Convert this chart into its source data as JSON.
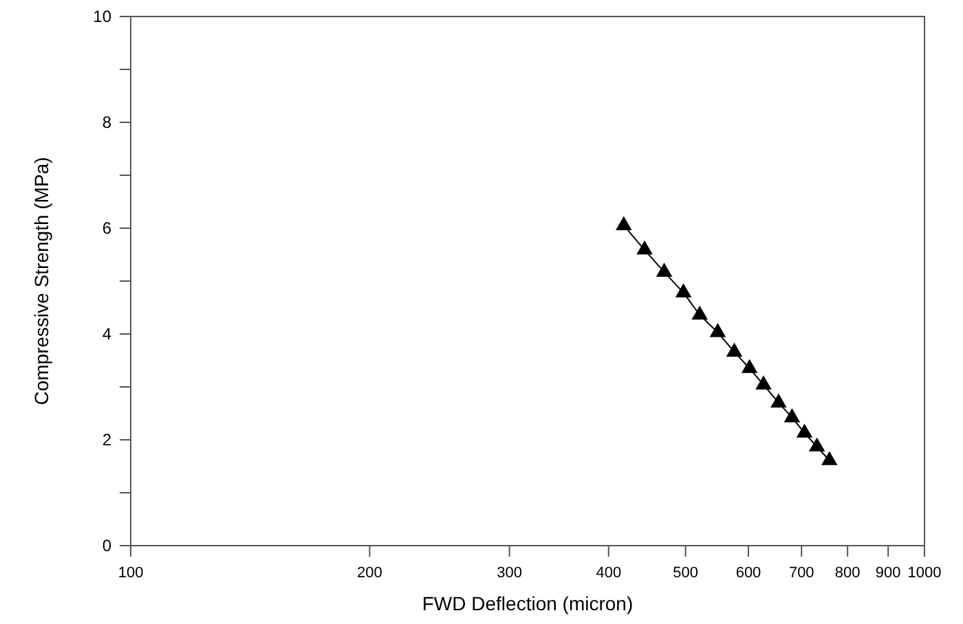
{
  "chart_data": {
    "type": "line",
    "xlabel": "FWD Deflection (micron)",
    "ylabel": "Compressive Strength (MPa)",
    "log": "x",
    "marker": "triangle",
    "line_style": "solid",
    "grid": false,
    "x": [
      418,
      444,
      470,
      497,
      521,
      549,
      576,
      602,
      627,
      655,
      681,
      706,
      732,
      759
    ],
    "series": [
      {
        "color": "#000000",
        "values": [
          6.05,
          5.59,
          5.17,
          4.78,
          4.36,
          4.03,
          3.66,
          3.35,
          3.04,
          2.7,
          2.42,
          2.13,
          1.87,
          1.61
        ]
      }
    ],
    "xlim": [
      100,
      1000
    ],
    "xticks": [
      100,
      200,
      300,
      400,
      500,
      600,
      700,
      800,
      900,
      1000
    ],
    "ylim": [
      0,
      10
    ],
    "yticks": [
      0,
      {
        "value": 1,
        "label": null
      },
      2,
      {
        "value": 3,
        "label": null
      },
      4,
      {
        "value": 5,
        "label": null
      },
      6,
      {
        "value": 7,
        "label": null
      },
      8,
      {
        "value": 9,
        "label": null
      },
      10
    ]
  }
}
